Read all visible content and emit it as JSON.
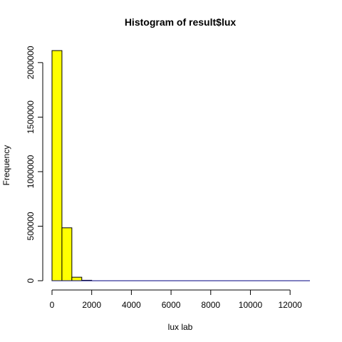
{
  "chart_data": {
    "type": "bar",
    "title": "Histogram of result$lux",
    "xlabel": "lux lab",
    "ylabel": "Frequency",
    "bin_width": 500,
    "bins": [
      {
        "start": 0,
        "end": 500,
        "count": 2110000
      },
      {
        "start": 500,
        "end": 1000,
        "count": 485000
      },
      {
        "start": 1000,
        "end": 1500,
        "count": 32000
      },
      {
        "start": 1500,
        "end": 2000,
        "count": 4000
      },
      {
        "start": 2000,
        "end": 2500,
        "count": 1500
      },
      {
        "start": 2500,
        "end": 3000,
        "count": 700
      },
      {
        "start": 3000,
        "end": 3500,
        "count": 400
      },
      {
        "start": 3500,
        "end": 4000,
        "count": 250
      },
      {
        "start": 4000,
        "end": 4500,
        "count": 180
      },
      {
        "start": 4500,
        "end": 5000,
        "count": 130
      },
      {
        "start": 5000,
        "end": 5500,
        "count": 100
      },
      {
        "start": 5500,
        "end": 6000,
        "count": 80
      },
      {
        "start": 6000,
        "end": 6500,
        "count": 60
      },
      {
        "start": 6500,
        "end": 7000,
        "count": 50
      },
      {
        "start": 7000,
        "end": 7500,
        "count": 40
      },
      {
        "start": 7500,
        "end": 8000,
        "count": 35
      },
      {
        "start": 8000,
        "end": 8500,
        "count": 30
      },
      {
        "start": 8500,
        "end": 9000,
        "count": 25
      },
      {
        "start": 9000,
        "end": 9500,
        "count": 20
      },
      {
        "start": 9500,
        "end": 10000,
        "count": 18
      },
      {
        "start": 10000,
        "end": 10500,
        "count": 15
      },
      {
        "start": 10500,
        "end": 11000,
        "count": 12
      },
      {
        "start": 11000,
        "end": 11500,
        "count": 10
      },
      {
        "start": 11500,
        "end": 12000,
        "count": 8
      },
      {
        "start": 12000,
        "end": 12500,
        "count": 6
      },
      {
        "start": 12500,
        "end": 13000,
        "count": 4
      }
    ],
    "xlim": [
      0,
      13000
    ],
    "ylim": [
      0,
      2110000
    ],
    "xticks": [
      0,
      2000,
      4000,
      6000,
      8000,
      10000,
      12000
    ],
    "xtick_labels": [
      "0",
      "2000",
      "4000",
      "6000",
      "8000",
      "10000",
      "12000"
    ],
    "yticks": [
      0,
      500000,
      1000000,
      1500000,
      2000000
    ],
    "ytick_labels": [
      "0",
      "500000",
      "1000000",
      "1500000",
      "2000000"
    ],
    "grid": false,
    "bar_fill": "#ffff00",
    "bar_stroke": "#000000",
    "baseline_color": "#000080"
  }
}
